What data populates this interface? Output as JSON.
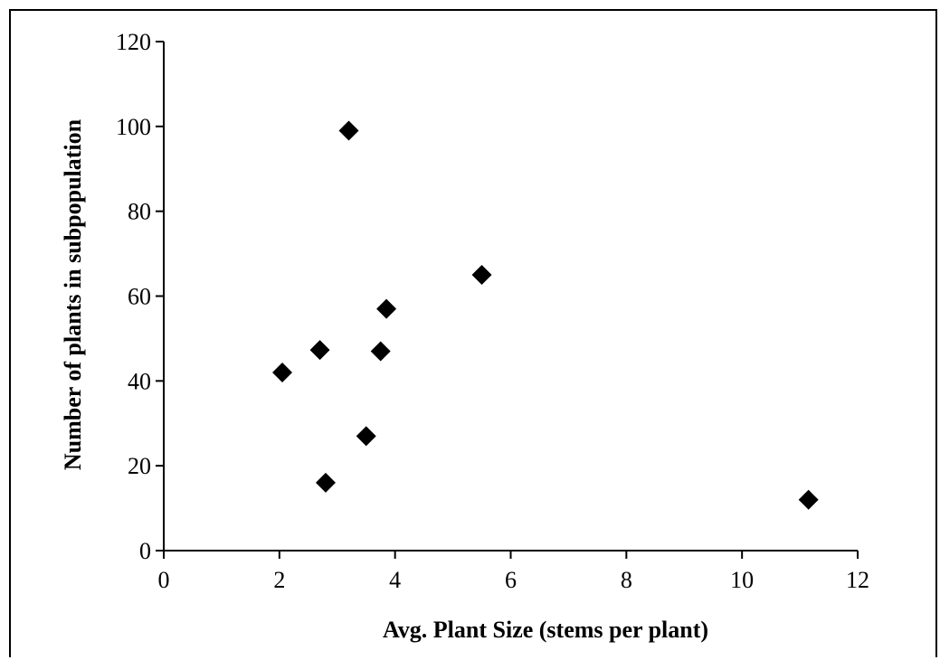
{
  "chart_data": {
    "type": "scatter",
    "title": "",
    "xlabel": "Avg. Plant Size (stems per plant)",
    "ylabel": "Number of plants in subpopulation",
    "xlim": [
      0,
      12
    ],
    "ylim": [
      0,
      120
    ],
    "x_ticks": [
      "0",
      "2",
      "4",
      "6",
      "8",
      "10",
      "12"
    ],
    "y_ticks": [
      "0",
      "20",
      "40",
      "60",
      "80",
      "100",
      "120"
    ],
    "grid": false,
    "legend": "none",
    "marker": "diamond",
    "marker_color": "#000000",
    "points": [
      {
        "x": 2.05,
        "y": 42
      },
      {
        "x": 2.7,
        "y": 47.3
      },
      {
        "x": 2.8,
        "y": 16
      },
      {
        "x": 3.2,
        "y": 99
      },
      {
        "x": 3.5,
        "y": 27
      },
      {
        "x": 3.75,
        "y": 47
      },
      {
        "x": 3.85,
        "y": 57
      },
      {
        "x": 5.5,
        "y": 65
      },
      {
        "x": 11.15,
        "y": 12
      }
    ]
  }
}
